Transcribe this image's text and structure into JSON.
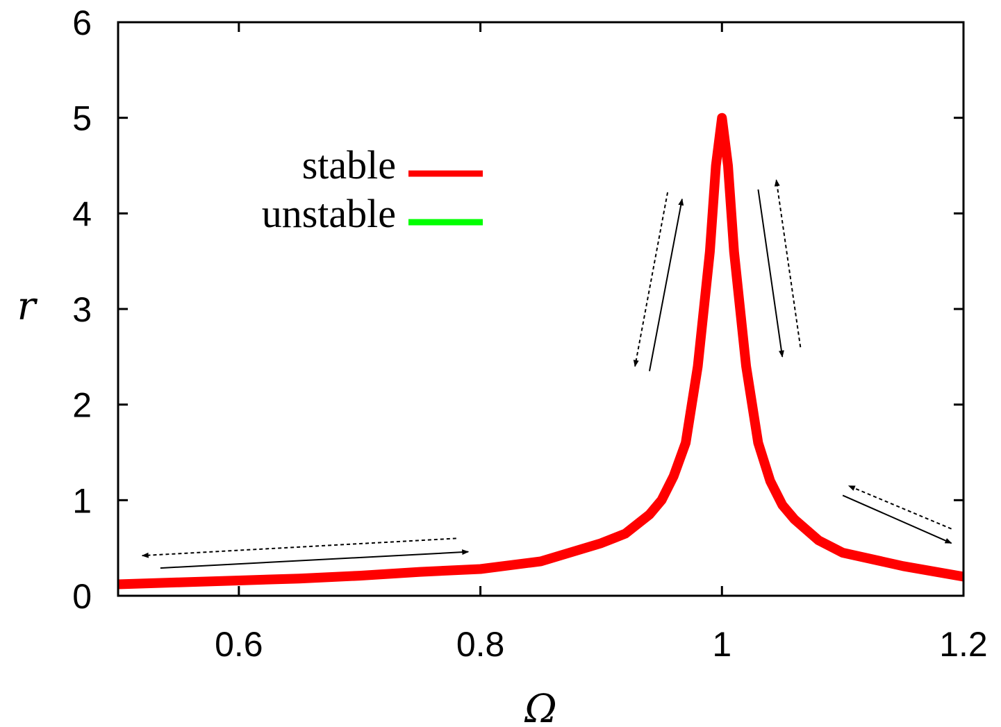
{
  "chart_data": {
    "type": "line",
    "xlabel": "Ω",
    "ylabel": "r",
    "xlim": [
      0.5,
      1.2
    ],
    "ylim": [
      0,
      6
    ],
    "x_ticks": [
      "0.6",
      "0.8",
      "1",
      "1.2"
    ],
    "x_tick_values": [
      0.6,
      0.8,
      1.0,
      1.2
    ],
    "y_ticks": [
      "0",
      "1",
      "2",
      "3",
      "4",
      "5",
      "6"
    ],
    "y_tick_values": [
      0,
      1,
      2,
      3,
      4,
      5,
      6
    ],
    "grid": false,
    "legend_position": "top-left",
    "series": [
      {
        "name": "stable",
        "color": "#ff0000",
        "x": [
          0.5,
          0.55,
          0.6,
          0.65,
          0.7,
          0.75,
          0.8,
          0.85,
          0.9,
          0.92,
          0.94,
          0.95,
          0.96,
          0.97,
          0.98,
          0.99,
          0.995,
          1.0,
          1.005,
          1.01,
          1.02,
          1.03,
          1.04,
          1.05,
          1.06,
          1.08,
          1.1,
          1.15,
          1.2
        ],
        "y": [
          0.12,
          0.14,
          0.16,
          0.18,
          0.21,
          0.25,
          0.28,
          0.36,
          0.55,
          0.65,
          0.85,
          1.0,
          1.25,
          1.6,
          2.4,
          3.6,
          4.5,
          5.0,
          4.5,
          3.6,
          2.4,
          1.6,
          1.2,
          0.95,
          0.8,
          0.58,
          0.45,
          0.31,
          0.2
        ]
      },
      {
        "name": "unstable",
        "color": "#00ff00",
        "x": [],
        "y": []
      }
    ],
    "annotations": [
      {
        "kind": "arrow",
        "style": "solid",
        "from": [
          0.535,
          0.29
        ],
        "to": [
          0.79,
          0.46
        ]
      },
      {
        "kind": "arrow",
        "style": "dashed",
        "from": [
          0.78,
          0.6
        ],
        "to": [
          0.52,
          0.42
        ]
      },
      {
        "kind": "arrow",
        "style": "solid",
        "from": [
          0.94,
          2.35
        ],
        "to": [
          0.967,
          4.15
        ]
      },
      {
        "kind": "arrow",
        "style": "dashed",
        "from": [
          0.955,
          4.22
        ],
        "to": [
          0.928,
          2.4
        ]
      },
      {
        "kind": "arrow",
        "style": "solid",
        "from": [
          1.03,
          4.25
        ],
        "to": [
          1.05,
          2.5
        ]
      },
      {
        "kind": "arrow",
        "style": "dashed",
        "from": [
          1.065,
          2.6
        ],
        "to": [
          1.045,
          4.35
        ]
      },
      {
        "kind": "arrow",
        "style": "solid",
        "from": [
          1.1,
          1.05
        ],
        "to": [
          1.19,
          0.55
        ]
      },
      {
        "kind": "arrow",
        "style": "dashed",
        "from": [
          1.19,
          0.7
        ],
        "to": [
          1.105,
          1.15
        ]
      }
    ]
  }
}
